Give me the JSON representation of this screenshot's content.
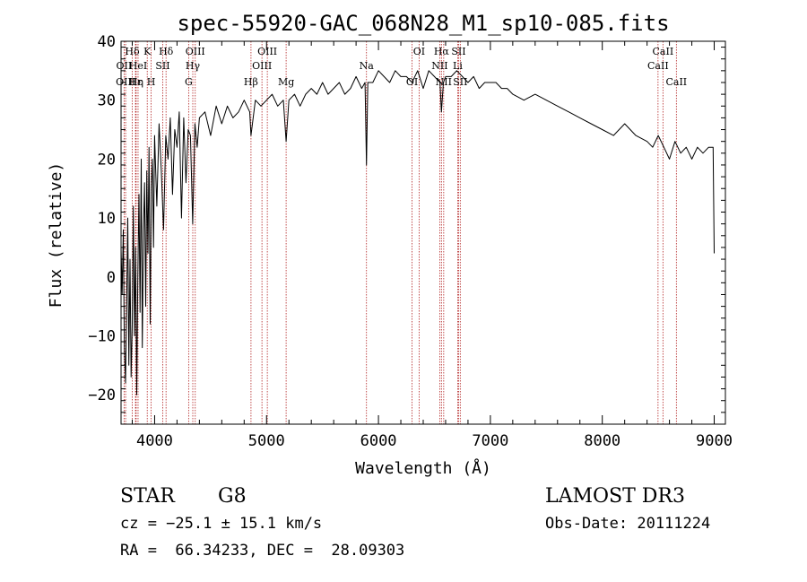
{
  "chart_data": {
    "type": "line",
    "title": "spec-55920-GAC_068N28_M1_sp10-085.fits",
    "xlabel": "Wavelength (Å)",
    "ylabel": "Flux (relative)",
    "xlim": [
      3700,
      9100
    ],
    "ylim": [
      -25,
      40
    ],
    "xticks": [
      4000,
      5000,
      6000,
      7000,
      8000,
      9000
    ],
    "yticks": [
      -20,
      -10,
      0,
      10,
      20,
      30,
      40
    ],
    "series": [
      {
        "name": "spectrum",
        "x": [
          3700,
          3710,
          3720,
          3730,
          3740,
          3750,
          3760,
          3770,
          3780,
          3790,
          3800,
          3810,
          3820,
          3830,
          3840,
          3850,
          3860,
          3870,
          3880,
          3890,
          3900,
          3910,
          3920,
          3930,
          3940,
          3950,
          3960,
          3970,
          3980,
          3990,
          4000,
          4020,
          4040,
          4060,
          4080,
          4100,
          4120,
          4140,
          4160,
          4180,
          4200,
          4220,
          4240,
          4260,
          4280,
          4300,
          4320,
          4340,
          4360,
          4380,
          4400,
          4450,
          4500,
          4550,
          4600,
          4650,
          4700,
          4750,
          4800,
          4850,
          4861,
          4900,
          4950,
          5000,
          5050,
          5100,
          5150,
          5175,
          5200,
          5250,
          5300,
          5350,
          5400,
          5450,
          5500,
          5550,
          5600,
          5650,
          5700,
          5750,
          5800,
          5850,
          5880,
          5893,
          5905,
          5950,
          6000,
          6050,
          6100,
          6150,
          6200,
          6250,
          6300,
          6350,
          6400,
          6450,
          6500,
          6550,
          6563,
          6580,
          6600,
          6650,
          6700,
          6750,
          6800,
          6850,
          6900,
          6950,
          7000,
          7050,
          7100,
          7150,
          7200,
          7300,
          7400,
          7500,
          7600,
          7700,
          7800,
          7900,
          8000,
          8100,
          8200,
          8300,
          8400,
          8450,
          8500,
          8550,
          8600,
          8650,
          8700,
          8750,
          8800,
          8850,
          8900,
          8950,
          8990,
          9000
        ],
        "y": [
          5,
          -3,
          8,
          -12,
          -18,
          -5,
          10,
          -15,
          3,
          -17,
          -8,
          12,
          -10,
          5,
          -20,
          0,
          14,
          -6,
          20,
          -12,
          8,
          16,
          -5,
          18,
          4,
          22,
          -8,
          15,
          20,
          5,
          24,
          12,
          26,
          18,
          8,
          24,
          20,
          27,
          14,
          25,
          22,
          28,
          10,
          27,
          16,
          25,
          24,
          9,
          26,
          22,
          27,
          28,
          24,
          29,
          26,
          29,
          27,
          28,
          30,
          28,
          24,
          30,
          29,
          30,
          31,
          29,
          30,
          23,
          30,
          31,
          29,
          31,
          32,
          31,
          33,
          31,
          32,
          33,
          31,
          32,
          34,
          32,
          33,
          19,
          33,
          33,
          35,
          34,
          33,
          35,
          34,
          34,
          33,
          35,
          32,
          35,
          34,
          33,
          28,
          33,
          34,
          34,
          35,
          34,
          33,
          34,
          32,
          33,
          33,
          33,
          32,
          32,
          31,
          30,
          31,
          30,
          29,
          28,
          27,
          26,
          25,
          24,
          26,
          24,
          23,
          22,
          24,
          22,
          20,
          23,
          21,
          22,
          20,
          22,
          21,
          22,
          22,
          4
        ],
        "color": "#000000"
      }
    ],
    "annotations": [
      {
        "label": "Hδ",
        "x": 3800,
        "row": 0
      },
      {
        "label": "OII",
        "x": 3727,
        "row": 1
      },
      {
        "label": "OIII",
        "x": 3741,
        "row": 2
      },
      {
        "label": "Hε",
        "x": 3829,
        "row": 2
      },
      {
        "label": "Hη",
        "x": 3835,
        "row": 2
      },
      {
        "label": "HeI",
        "x": 3852,
        "row": 1
      },
      {
        "label": "K",
        "x": 3934,
        "row": 0
      },
      {
        "label": "H",
        "x": 3969,
        "row": 2
      },
      {
        "label": "SII",
        "x": 4072,
        "row": 1
      },
      {
        "label": "Hδ",
        "x": 4102,
        "row": 0
      },
      {
        "label": "G",
        "x": 4304,
        "row": 2
      },
      {
        "label": "Hγ",
        "x": 4341,
        "row": 1
      },
      {
        "label": "OIII",
        "x": 4363,
        "row": 0
      },
      {
        "label": "Hβ",
        "x": 4861,
        "row": 2
      },
      {
        "label": "OIII",
        "x": 4959,
        "row": 1
      },
      {
        "label": "OIII",
        "x": 5007,
        "row": 0
      },
      {
        "label": "Mg",
        "x": 5175,
        "row": 2
      },
      {
        "label": "Na",
        "x": 5893,
        "row": 1
      },
      {
        "label": "OI",
        "x": 6300,
        "row": 2
      },
      {
        "label": "OI",
        "x": 6363,
        "row": 0
      },
      {
        "label": "NII",
        "x": 6548,
        "row": 1
      },
      {
        "label": "Hα",
        "x": 6563,
        "row": 0
      },
      {
        "label": "NII",
        "x": 6583,
        "row": 2
      },
      {
        "label": "Li",
        "x": 6708,
        "row": 1
      },
      {
        "label": "SII",
        "x": 6716,
        "row": 0
      },
      {
        "label": "SII",
        "x": 6731,
        "row": 2
      },
      {
        "label": "CaII",
        "x": 8498,
        "row": 1
      },
      {
        "label": "CaII",
        "x": 8542,
        "row": 0
      },
      {
        "label": "CaII",
        "x": 8662,
        "row": 2
      }
    ]
  },
  "info": {
    "object_class": "STAR",
    "subclass": "G8",
    "survey": "LAMOST DR3",
    "cz_line": "cz = −25.1 ± 15.1 km/s",
    "obs_date_line": "Obs-Date: 20111224",
    "coords_line": "RA =  66.34233, DEC =  28.09303"
  }
}
